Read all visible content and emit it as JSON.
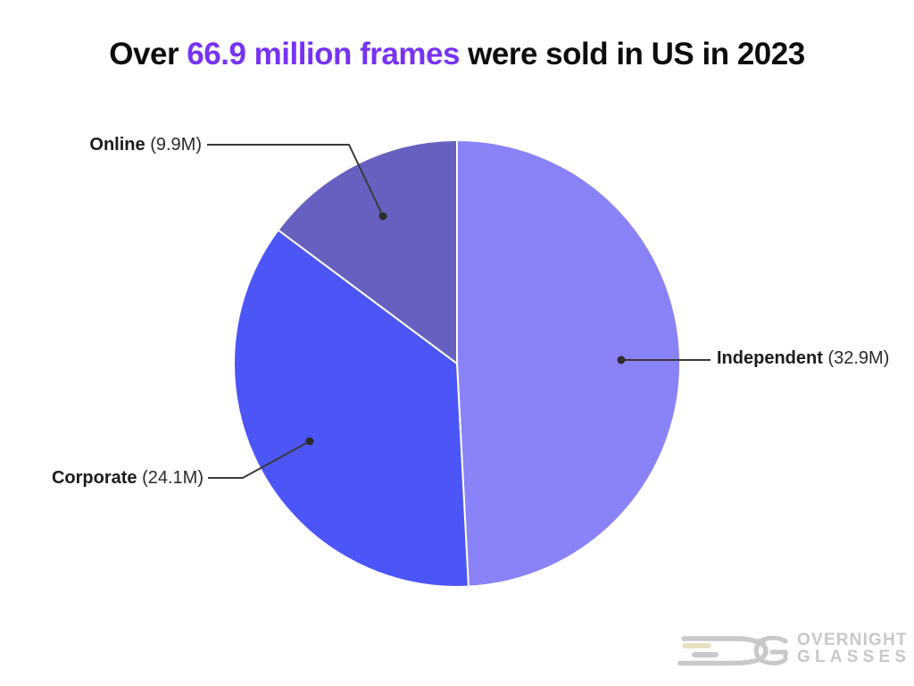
{
  "header": {
    "title_prefix": "Over ",
    "title_highlight": "66.9 million frames",
    "title_suffix": " were sold in US in 2023",
    "highlight_color": "#7633f2",
    "text_color": "#0d0d0d"
  },
  "chart_data": {
    "type": "pie",
    "title": "Over 66.9 million frames were sold in US in 2023",
    "total": 66.9,
    "unit": "million frames",
    "direction": "clockwise",
    "start_angle": "12 o'clock",
    "slice_stroke_color": "#ffffff",
    "leader_line_color": "#3a3a3a",
    "segments": [
      {
        "label": "Independent",
        "value": 32.9,
        "value_display": "(32.9M)",
        "color": "#8a82f7"
      },
      {
        "label": "Corporate",
        "value": 24.1,
        "value_display": "(24.1M)",
        "color": "#4c55f5"
      },
      {
        "label": "Online",
        "value": 9.9,
        "value_display": "(9.9M)",
        "color": "#6661c0"
      }
    ]
  },
  "logo": {
    "line1": "OVERNIGHT",
    "line2": "GLASSES",
    "text_color": "#c8c8c8",
    "icon_color": "#c9c9c9",
    "accent_line_color": "#e8e1c1"
  }
}
